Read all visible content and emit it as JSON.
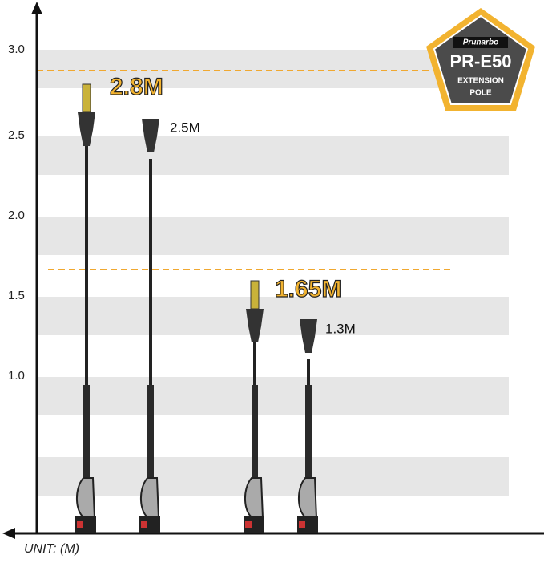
{
  "axis": {
    "ticks": [
      "3.0",
      "2.5",
      "2.0",
      "1.5",
      "1.0"
    ],
    "unit": "UNIT: (M)"
  },
  "badge": {
    "brand": "Prunarbo",
    "model": "PR-E50",
    "line1": "EXTENSION",
    "line2": "POLE"
  },
  "tools": [
    {
      "label": "2.8M"
    },
    {
      "label": "2.5M"
    },
    {
      "label": "1.65M"
    },
    {
      "label": "1.3M"
    }
  ]
}
